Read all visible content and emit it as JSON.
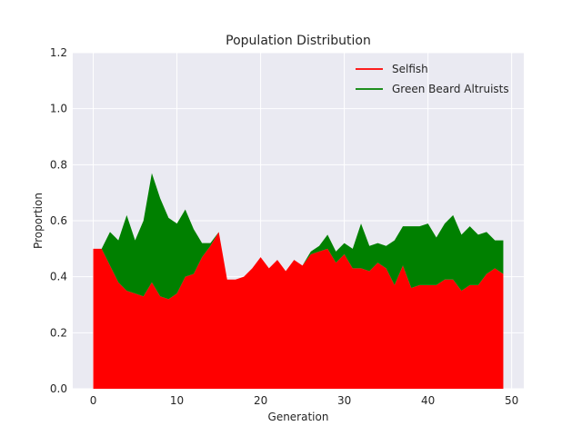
{
  "chart_data": {
    "type": "area",
    "stacked": true,
    "title": "Population Distribution",
    "xlabel": "Generation",
    "ylabel": "Proportion",
    "xlim": [
      -2.45,
      51.45
    ],
    "ylim": [
      0,
      1.2
    ],
    "xticks": [
      0,
      10,
      20,
      30,
      40,
      50
    ],
    "yticks": [
      0.0,
      0.2,
      0.4,
      0.6,
      0.8,
      1.0,
      1.2
    ],
    "grid": true,
    "legend_position": "upper-right",
    "x": [
      0,
      1,
      2,
      3,
      4,
      5,
      6,
      7,
      8,
      9,
      10,
      11,
      12,
      13,
      14,
      15,
      16,
      17,
      18,
      19,
      20,
      21,
      22,
      23,
      24,
      25,
      26,
      27,
      28,
      29,
      30,
      31,
      32,
      33,
      34,
      35,
      36,
      37,
      38,
      39,
      40,
      41,
      42,
      43,
      44,
      45,
      46,
      47,
      48,
      49
    ],
    "series": [
      {
        "name": "Selfish",
        "color": "#ff0000",
        "values": [
          0.5,
          0.5,
          0.44,
          0.38,
          0.35,
          0.34,
          0.33,
          0.38,
          0.33,
          0.32,
          0.34,
          0.4,
          0.41,
          0.47,
          0.51,
          0.56,
          0.39,
          0.39,
          0.4,
          0.43,
          0.47,
          0.43,
          0.46,
          0.42,
          0.46,
          0.44,
          0.48,
          0.49,
          0.5,
          0.45,
          0.48,
          0.43,
          0.43,
          0.42,
          0.45,
          0.43,
          0.37,
          0.44,
          0.36,
          0.37,
          0.37,
          0.37,
          0.39,
          0.39,
          0.35,
          0.37,
          0.37,
          0.41,
          0.43,
          0.41
        ]
      },
      {
        "name": "Green Beard Altruists",
        "color": "#008000",
        "values": [
          0.0,
          0.0,
          0.12,
          0.15,
          0.27,
          0.19,
          0.27,
          0.39,
          0.35,
          0.29,
          0.25,
          0.24,
          0.16,
          0.05,
          0.01,
          0.0,
          0.0,
          0.0,
          0.0,
          0.0,
          0.0,
          0.0,
          0.0,
          0.0,
          0.0,
          0.0,
          0.01,
          0.02,
          0.05,
          0.04,
          0.04,
          0.07,
          0.16,
          0.09,
          0.07,
          0.08,
          0.16,
          0.14,
          0.22,
          0.21,
          0.22,
          0.17,
          0.2,
          0.23,
          0.2,
          0.21,
          0.18,
          0.15,
          0.1,
          0.12
        ]
      }
    ]
  }
}
